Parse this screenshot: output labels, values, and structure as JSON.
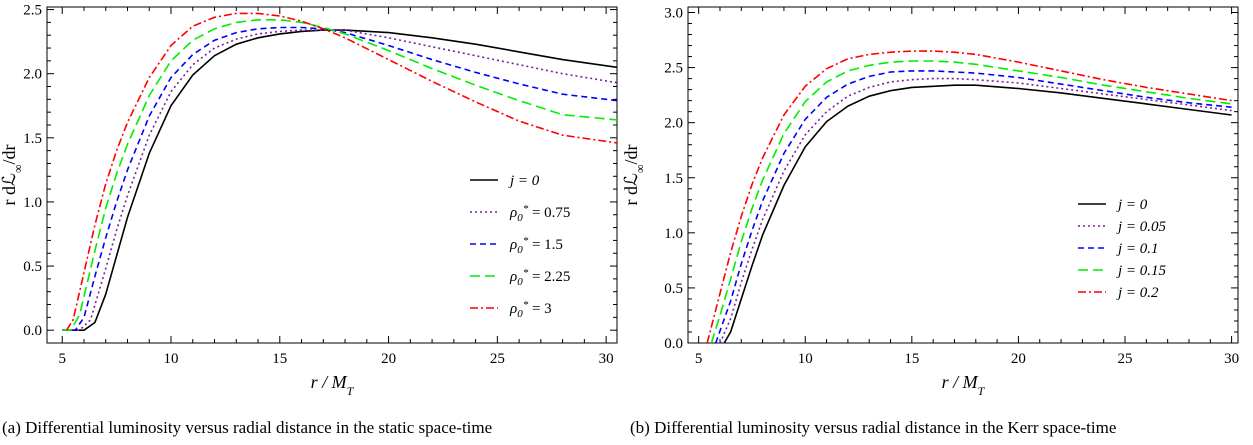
{
  "chart_data": [
    {
      "type": "line",
      "title": "",
      "xlabel": "r / M_T",
      "ylabel": "r dℒ∞/dr",
      "xlim": [
        4.3,
        30.5
      ],
      "ylim": [
        -0.1,
        2.52
      ],
      "xticks": [
        5,
        10,
        15,
        20,
        25,
        30
      ],
      "xtick_labels": [
        "5",
        "10",
        "15",
        "20",
        "25",
        "30"
      ],
      "yticks": [
        0,
        0.5,
        1,
        1.5,
        2,
        2.5
      ],
      "ytick_labels": [
        "0.0",
        "0.5",
        "1.0",
        "1.5",
        "2.0",
        "2.5"
      ],
      "legend_position": "right",
      "series": [
        {
          "name": "j = 0",
          "color": "#000000",
          "dash": "solid",
          "x": [
            5,
            6,
            6.5,
            7,
            7.5,
            8,
            9,
            10,
            11,
            12,
            13,
            14,
            15,
            16,
            17,
            18,
            20,
            22,
            24,
            26,
            28,
            30.5
          ],
          "y": [
            0,
            0,
            0.06,
            0.28,
            0.58,
            0.88,
            1.38,
            1.75,
            1.99,
            2.14,
            2.23,
            2.28,
            2.31,
            2.33,
            2.34,
            2.34,
            2.32,
            2.28,
            2.23,
            2.17,
            2.11,
            2.05
          ]
        },
        {
          "name": "ρ0* = 0.75",
          "color": "#7b1fa2",
          "dash": "dotted",
          "x": [
            5,
            5.8,
            6.3,
            7,
            7.5,
            8,
            9,
            10,
            11,
            12,
            13,
            14,
            15,
            16,
            17,
            18,
            20,
            22,
            24,
            26,
            28,
            30.5
          ],
          "y": [
            0,
            0,
            0.08,
            0.48,
            0.78,
            1.05,
            1.52,
            1.86,
            2.07,
            2.2,
            2.27,
            2.31,
            2.33,
            2.34,
            2.34,
            2.34,
            2.28,
            2.21,
            2.14,
            2.07,
            2.0,
            1.93
          ]
        },
        {
          "name": "ρ0* = 1.5",
          "color": "#0000ff",
          "dash": "dashed",
          "x": [
            5,
            5.6,
            6,
            6.5,
            7,
            7.5,
            8,
            9,
            10,
            11,
            12,
            13,
            14,
            15,
            16,
            17,
            18,
            20,
            22,
            24,
            26,
            28,
            30.5
          ],
          "y": [
            0,
            0,
            0.1,
            0.42,
            0.72,
            1.0,
            1.25,
            1.67,
            1.97,
            2.15,
            2.26,
            2.32,
            2.35,
            2.36,
            2.36,
            2.35,
            2.32,
            2.22,
            2.11,
            2.01,
            1.92,
            1.84,
            1.79
          ]
        },
        {
          "name": "ρ0* = 2.25",
          "color": "#00ee00",
          "dash": "longdash",
          "x": [
            5,
            5.4,
            5.8,
            6.5,
            7,
            7.5,
            8,
            9,
            10,
            11,
            12,
            13,
            14,
            15,
            16,
            17,
            18,
            20,
            22,
            24,
            26,
            28,
            30.5
          ],
          "y": [
            0,
            0,
            0.12,
            0.62,
            0.95,
            1.22,
            1.45,
            1.83,
            2.1,
            2.26,
            2.35,
            2.4,
            2.42,
            2.42,
            2.4,
            2.36,
            2.31,
            2.18,
            2.04,
            1.91,
            1.79,
            1.68,
            1.64
          ]
        },
        {
          "name": "ρ0* = 3",
          "color": "#ff0000",
          "dash": "dashdot",
          "x": [
            5.2,
            5.5,
            6,
            6.5,
            7,
            7.5,
            8,
            9,
            10,
            11,
            12,
            13,
            14,
            15,
            16,
            17,
            18,
            20,
            22,
            24,
            26,
            28,
            30.5
          ],
          "y": [
            0,
            0.08,
            0.45,
            0.82,
            1.14,
            1.4,
            1.62,
            1.97,
            2.22,
            2.37,
            2.44,
            2.47,
            2.47,
            2.45,
            2.41,
            2.35,
            2.28,
            2.11,
            1.94,
            1.78,
            1.63,
            1.52,
            1.46
          ]
        }
      ],
      "caption": "(a)  Differential luminosity versus radial distance in the static space-time"
    },
    {
      "type": "line",
      "title": "",
      "xlabel": "r / M_T",
      "ylabel": "r dℒ∞/dr",
      "xlim": [
        4.5,
        30.3
      ],
      "ylim": [
        0,
        3.05
      ],
      "xticks": [
        5,
        10,
        15,
        20,
        25,
        30
      ],
      "xtick_labels": [
        "5",
        "10",
        "15",
        "20",
        "25",
        "30"
      ],
      "yticks": [
        0,
        0.5,
        1,
        1.5,
        2,
        2.5,
        3
      ],
      "ytick_labels": [
        "0.0",
        "0.5",
        "1.0",
        "1.5",
        "2.0",
        "2.5",
        "3.0"
      ],
      "legend_position": "bottom-right",
      "series": [
        {
          "name": "j = 0",
          "color": "#000000",
          "dash": "solid",
          "x": [
            6.2,
            6.5,
            7,
            7.5,
            8,
            9,
            10,
            11,
            12,
            13,
            14,
            15,
            16,
            17,
            18,
            20,
            22,
            24,
            26,
            28,
            30
          ],
          "y": [
            0,
            0.1,
            0.4,
            0.7,
            0.98,
            1.43,
            1.78,
            2.01,
            2.15,
            2.24,
            2.29,
            2.32,
            2.33,
            2.34,
            2.34,
            2.31,
            2.27,
            2.22,
            2.17,
            2.12,
            2.07
          ]
        },
        {
          "name": "j = 0.05",
          "color": "#7b1fa2",
          "dash": "dotted",
          "x": [
            6.0,
            6.5,
            7,
            7.5,
            8,
            9,
            10,
            11,
            12,
            13,
            14,
            15,
            16,
            17,
            18,
            20,
            22,
            24,
            26,
            28,
            30
          ],
          "y": [
            0,
            0.22,
            0.55,
            0.85,
            1.12,
            1.56,
            1.89,
            2.1,
            2.24,
            2.32,
            2.37,
            2.39,
            2.4,
            2.4,
            2.39,
            2.36,
            2.31,
            2.26,
            2.21,
            2.16,
            2.11
          ]
        },
        {
          "name": "j = 0.1",
          "color": "#0000ff",
          "dash": "dashed",
          "x": [
            5.8,
            6.5,
            7,
            7.5,
            8,
            9,
            10,
            11,
            12,
            13,
            14,
            15,
            16,
            17,
            18,
            20,
            22,
            24,
            26,
            28,
            30
          ],
          "y": [
            0,
            0.38,
            0.72,
            1.02,
            1.29,
            1.72,
            2.03,
            2.23,
            2.35,
            2.42,
            2.46,
            2.47,
            2.47,
            2.46,
            2.45,
            2.41,
            2.35,
            2.29,
            2.23,
            2.18,
            2.14
          ]
        },
        {
          "name": "j = 0.15",
          "color": "#00ee00",
          "dash": "longdash",
          "x": [
            5.6,
            6,
            6.5,
            7,
            7.5,
            8,
            9,
            10,
            11,
            12,
            13,
            14,
            15,
            16,
            17,
            18,
            20,
            22,
            24,
            26,
            28,
            30
          ],
          "y": [
            0,
            0.25,
            0.58,
            0.92,
            1.22,
            1.48,
            1.9,
            2.19,
            2.37,
            2.47,
            2.52,
            2.55,
            2.56,
            2.56,
            2.55,
            2.53,
            2.47,
            2.41,
            2.34,
            2.28,
            2.22,
            2.17
          ]
        },
        {
          "name": "j = 0.2",
          "color": "#ff0000",
          "dash": "dashdot",
          "x": [
            5.4,
            6,
            6.5,
            7,
            7.5,
            8,
            9,
            10,
            11,
            12,
            13,
            14,
            15,
            16,
            17,
            18,
            20,
            22,
            24,
            26,
            28,
            30
          ],
          "y": [
            0,
            0.45,
            0.82,
            1.15,
            1.44,
            1.68,
            2.07,
            2.33,
            2.49,
            2.58,
            2.62,
            2.64,
            2.65,
            2.65,
            2.64,
            2.62,
            2.55,
            2.47,
            2.39,
            2.32,
            2.26,
            2.2
          ]
        }
      ],
      "caption": "(b)  Differential luminosity versus radial distance in the Kerr space-time"
    }
  ]
}
